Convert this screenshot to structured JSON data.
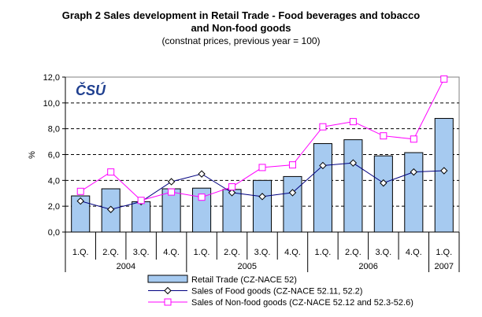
{
  "chart_data": {
    "type": "bar+line",
    "title": "Graph 2 Sales development in Retail Trade - Food beverages and tobacco",
    "title_line2": "and Non-food goods",
    "subtitle": "(constnat prices, previous year = 100)",
    "ylabel": "%",
    "ylim": [
      0,
      12
    ],
    "yticks": [
      "0,0",
      "2,0",
      "4,0",
      "6,0",
      "8,0",
      "10,0",
      "12,0"
    ],
    "grid": true,
    "legend_position": "bottom",
    "logo": "ČSÚ",
    "categories": [
      "1.Q.",
      "2.Q.",
      "3.Q.",
      "4.Q.",
      "1.Q.",
      "2.Q.",
      "3.Q.",
      "4.Q.",
      "1.Q.",
      "2.Q.",
      "3.Q.",
      "4.Q.",
      "1.Q."
    ],
    "years": [
      {
        "label": "2004",
        "span": 4
      },
      {
        "label": "2005",
        "span": 4
      },
      {
        "label": "2006",
        "span": 4
      },
      {
        "label": "2007",
        "span": 1
      }
    ],
    "series": [
      {
        "name": "Retail Trade (CZ-NACE 52)",
        "type": "bar",
        "color": "#A6CAF0",
        "values": [
          2.8,
          3.35,
          2.35,
          3.35,
          3.4,
          3.3,
          4.0,
          4.3,
          6.85,
          7.15,
          5.9,
          6.15,
          8.8
        ]
      },
      {
        "name": "Sales of Food goods (CZ-NACE 52.11, 52.2)",
        "type": "line",
        "marker": "diamond",
        "color": "#000080",
        "values": [
          2.4,
          1.75,
          2.35,
          3.9,
          4.5,
          3.05,
          2.75,
          3.05,
          5.15,
          5.35,
          3.8,
          4.65,
          4.75
        ]
      },
      {
        "name": "Sales of Non-food goods (CZ-NACE 52.12 and 52.3-52.6)",
        "type": "line",
        "marker": "square",
        "color": "#FF00FF",
        "values": [
          3.15,
          4.65,
          2.45,
          3.1,
          2.7,
          3.5,
          5.0,
          5.2,
          8.15,
          8.55,
          7.45,
          7.2,
          11.85
        ]
      }
    ]
  }
}
